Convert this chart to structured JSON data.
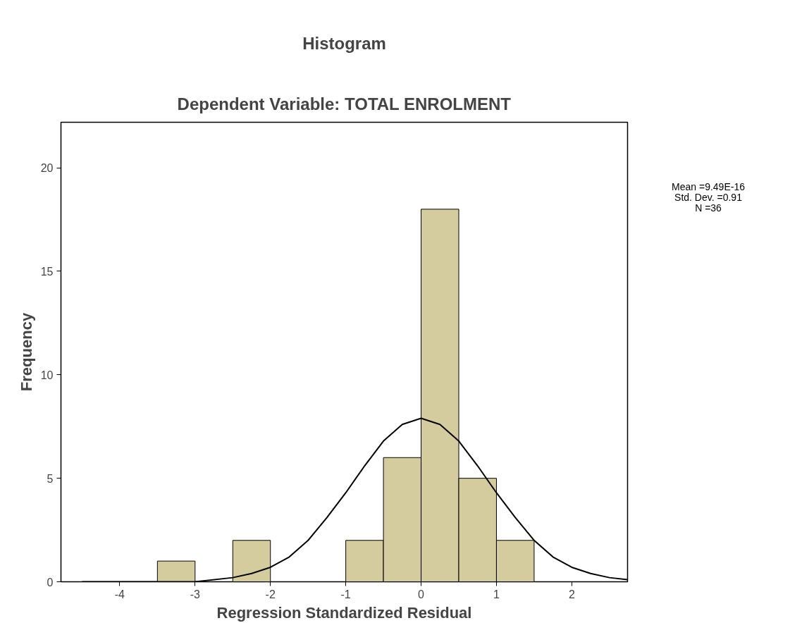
{
  "chart_data": {
    "type": "histogram",
    "title": "Histogram",
    "subtitle": "Dependent Variable: TOTAL ENROLMENT",
    "xlabel": "Regression Standardized Residual",
    "ylabel": "Frequency",
    "bins": [
      -3.5,
      -3,
      -2.5,
      -2,
      -1.5,
      -1,
      -0.5,
      0,
      0.5,
      1,
      1.5
    ],
    "values": [
      1,
      0,
      2,
      0,
      0,
      2,
      6,
      18,
      5,
      2
    ],
    "color": "#d4cc9f",
    "series": [
      {
        "type": "line",
        "color": "#000000",
        "x": [
          -4.5,
          -4,
          -3.5,
          -3,
          -2.5,
          -2.25,
          -2,
          -1.75,
          -1.5,
          -1.25,
          -1,
          -0.75,
          -0.5,
          -0.25,
          0,
          0.25,
          0.5,
          0.75,
          1,
          1.25,
          1.5,
          1.75,
          2,
          2.25,
          2.5,
          2.74
        ],
        "values": [
          0,
          0,
          0,
          0,
          0.2,
          0.4,
          0.7,
          1.2,
          2,
          3.1,
          4.3,
          5.6,
          6.8,
          7.6,
          7.9,
          7.6,
          6.8,
          5.6,
          4.3,
          3.1,
          2,
          1.2,
          0.7,
          0.4,
          0.2,
          0.1
        ]
      }
    ],
    "xlim": [
      -4.78,
      2.74
    ],
    "ylim": [
      0,
      22.2
    ],
    "xticks": [
      -4,
      -3,
      -2,
      -1,
      0,
      1,
      2
    ],
    "yticks": [
      0,
      5,
      10,
      15,
      20
    ],
    "grid": false,
    "annotations": [
      "Mean =9.49E-16",
      "Std. Dev. =0.91",
      "N =36"
    ]
  }
}
